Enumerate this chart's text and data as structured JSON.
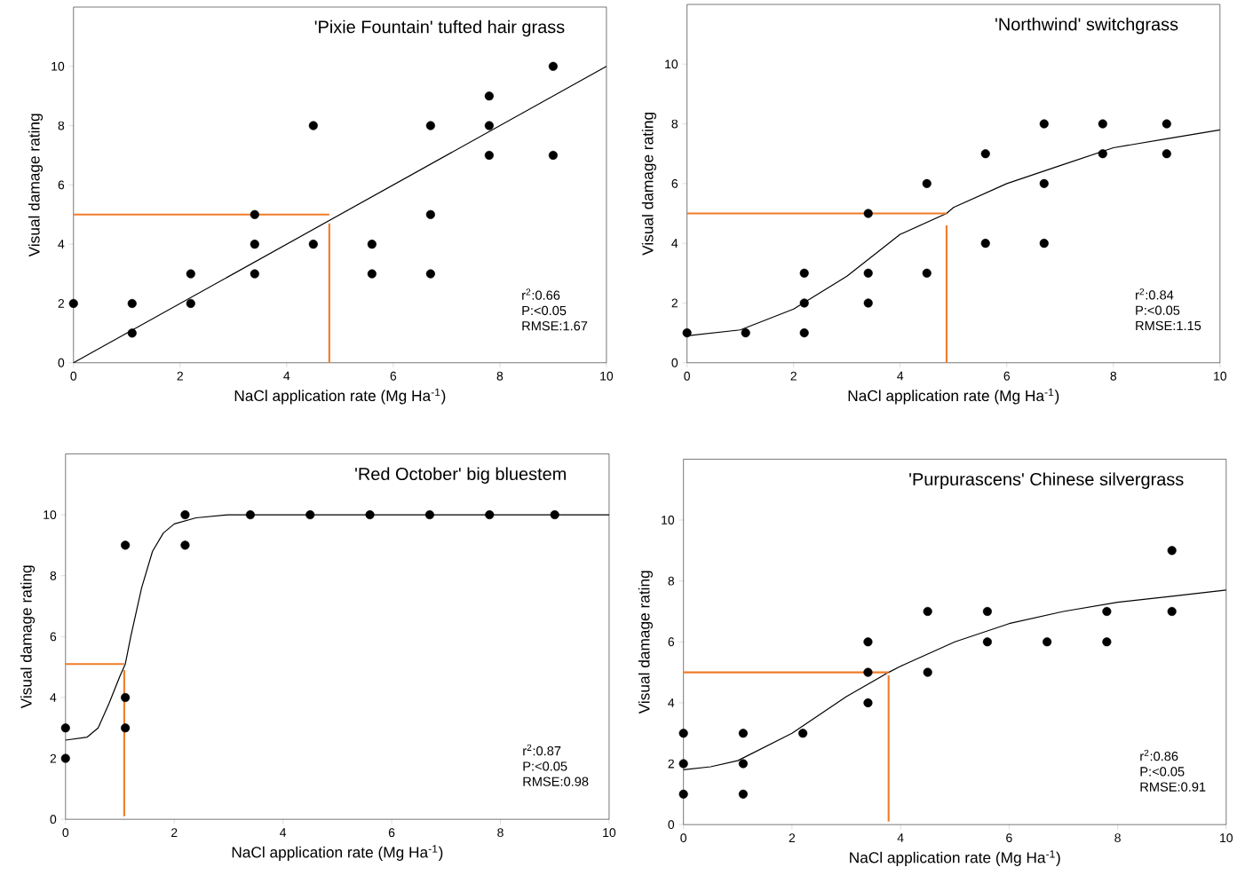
{
  "chart_data": [
    {
      "type": "scatter",
      "title": "'Pixie Fountain' tufted hair grass",
      "xlabel": "NaCl application rate (Mg Ha$^{-1}$)",
      "ylabel": "Visual damage rating",
      "xlim": [
        0,
        10
      ],
      "ylim": [
        0,
        12
      ],
      "xticks": [
        0,
        2,
        4,
        6,
        8,
        10
      ],
      "yticks": [
        0,
        2,
        4,
        6,
        8,
        10
      ],
      "grid": false,
      "annotations": [
        "r$^{2}$:0.66",
        "P:<0.05",
        "RMSE:1.67"
      ],
      "series": [
        {
          "type": "scatter",
          "marker": "circle",
          "color": "#000000",
          "x": [
            0,
            1.1,
            1.1,
            2.2,
            2.2,
            3.4,
            3.4,
            3.4,
            4.5,
            4.5,
            5.6,
            5.6,
            6.7,
            6.7,
            6.7,
            7.8,
            7.8,
            7.8,
            9,
            9
          ],
          "values": [
            2,
            2,
            1,
            3,
            2,
            5,
            4,
            3,
            8,
            4,
            4,
            3,
            8,
            5,
            3,
            9,
            8,
            7,
            10,
            7
          ]
        },
        {
          "type": "line",
          "marker": "none",
          "color": "#000000",
          "x": [
            0,
            10
          ],
          "values": [
            0,
            10
          ]
        },
        {
          "type": "line",
          "marker": "none",
          "color": "#f07c28",
          "x": [
            0,
            4.8
          ],
          "values": [
            5,
            5
          ]
        },
        {
          "type": "line",
          "marker": "none",
          "color": "#f07c28",
          "x": [
            4.8,
            4.8
          ],
          "values": [
            4.7,
            0
          ]
        }
      ]
    },
    {
      "type": "scatter",
      "title": "'Northwind' switchgrass",
      "xlabel": "NaCl application rate (Mg Ha$^{-1}$)",
      "ylabel": "Visual damage rating",
      "xlim": [
        0,
        10
      ],
      "ylim": [
        0,
        12
      ],
      "xticks": [
        0,
        2,
        4,
        6,
        8,
        10
      ],
      "yticks": [
        0,
        2,
        4,
        6,
        8,
        10
      ],
      "grid": false,
      "annotations": [
        "r$^{2}$:0.84",
        "P:<0.05",
        "RMSE:1.15"
      ],
      "series": [
        {
          "type": "scatter",
          "marker": "circle",
          "color": "#000000",
          "x": [
            0,
            1.1,
            2.2,
            2.2,
            2.2,
            3.4,
            3.4,
            3.4,
            4.5,
            4.5,
            5.6,
            5.6,
            6.7,
            6.7,
            6.7,
            7.8,
            7.8,
            9,
            9
          ],
          "values": [
            1,
            1,
            3,
            2,
            1,
            5,
            3,
            2,
            6,
            3,
            7,
            4,
            8,
            6,
            4,
            8,
            7,
            8,
            7
          ]
        },
        {
          "type": "line",
          "marker": "none",
          "color": "#000000",
          "x": [
            0,
            1,
            2,
            3,
            4,
            4.87,
            5,
            6,
            7,
            8,
            9,
            10
          ],
          "values": [
            0.9,
            1.1,
            1.8,
            2.9,
            4.3,
            5,
            5.2,
            6.0,
            6.6,
            7.2,
            7.5,
            7.8
          ]
        },
        {
          "type": "line",
          "marker": "none",
          "color": "#f07c28",
          "x": [
            0,
            4.87
          ],
          "values": [
            5,
            5
          ]
        },
        {
          "type": "line",
          "marker": "none",
          "color": "#f07c28",
          "x": [
            4.87,
            4.87
          ],
          "values": [
            4.6,
            0
          ]
        }
      ]
    },
    {
      "type": "scatter",
      "title": "'Red October' big bluestem",
      "xlabel": "NaCl application rate (Mg Ha$^{-1}$)",
      "ylabel": "Visual damage rating",
      "xlim": [
        0,
        10
      ],
      "ylim": [
        0,
        12
      ],
      "xticks": [
        0,
        2,
        4,
        6,
        8,
        10
      ],
      "yticks": [
        0,
        2,
        4,
        6,
        8,
        10
      ],
      "grid": false,
      "annotations": [
        "r$^{2}$:0.87",
        "P:<0.05",
        "RMSE:0.98"
      ],
      "series": [
        {
          "type": "scatter",
          "marker": "circle",
          "color": "#000000",
          "x": [
            0,
            0,
            1.1,
            1.1,
            1.1,
            2.2,
            2.2,
            3.4,
            4.5,
            5.6,
            6.7,
            7.8,
            9
          ],
          "values": [
            3,
            2,
            9,
            4,
            3,
            10,
            9,
            10,
            10,
            10,
            10,
            10,
            10
          ]
        },
        {
          "type": "line",
          "marker": "none",
          "color": "#000000",
          "x": [
            0,
            0.4,
            0.6,
            0.8,
            1.0,
            1.1,
            1.2,
            1.4,
            1.6,
            1.8,
            2.0,
            2.4,
            3,
            4,
            10
          ],
          "values": [
            2.6,
            2.7,
            3.0,
            3.8,
            4.7,
            5.1,
            6.0,
            7.6,
            8.8,
            9.4,
            9.7,
            9.9,
            10,
            10,
            10
          ]
        },
        {
          "type": "line",
          "marker": "none",
          "color": "#f07c28",
          "x": [
            0,
            1.08
          ],
          "values": [
            5.1,
            5.1
          ]
        },
        {
          "type": "line",
          "marker": "none",
          "color": "#f07c28",
          "x": [
            1.08,
            1.08
          ],
          "values": [
            4.9,
            0.1
          ]
        }
      ]
    },
    {
      "type": "scatter",
      "title": "'Purpurascens' Chinese silvergrass",
      "xlabel": "NaCl application rate (Mg Ha$^{-1}$)",
      "ylabel": "Visual damage rating",
      "xlim": [
        0,
        10
      ],
      "ylim": [
        0,
        12
      ],
      "xticks": [
        0,
        2,
        4,
        6,
        8,
        10
      ],
      "yticks": [
        0,
        2,
        4,
        6,
        8,
        10
      ],
      "grid": false,
      "annotations": [
        "r$^{2}$:0.86",
        "P:<0.05",
        "RMSE:0.91"
      ],
      "series": [
        {
          "type": "scatter",
          "marker": "circle",
          "color": "#000000",
          "x": [
            0,
            0,
            0,
            1.1,
            1.1,
            1.1,
            2.2,
            3.4,
            3.4,
            3.4,
            4.5,
            4.5,
            5.6,
            5.6,
            6.7,
            7.8,
            7.8,
            9,
            9
          ],
          "values": [
            3,
            2,
            1,
            3,
            2,
            1,
            3,
            6,
            5,
            4,
            7,
            5,
            7,
            6,
            6,
            7,
            6,
            9,
            7
          ]
        },
        {
          "type": "line",
          "marker": "none",
          "color": "#000000",
          "x": [
            0,
            0.5,
            1,
            2,
            3,
            3.78,
            4,
            5,
            6,
            7,
            8,
            9,
            10
          ],
          "values": [
            1.8,
            1.9,
            2.1,
            3.0,
            4.2,
            5,
            5.2,
            6.0,
            6.6,
            7.0,
            7.3,
            7.5,
            7.7
          ]
        },
        {
          "type": "line",
          "marker": "none",
          "color": "#f07c28",
          "x": [
            0,
            3.78
          ],
          "values": [
            5,
            5
          ]
        },
        {
          "type": "line",
          "marker": "none",
          "color": "#f07c28",
          "x": [
            3.78,
            3.78
          ],
          "values": [
            4.9,
            0.1
          ]
        }
      ]
    }
  ]
}
